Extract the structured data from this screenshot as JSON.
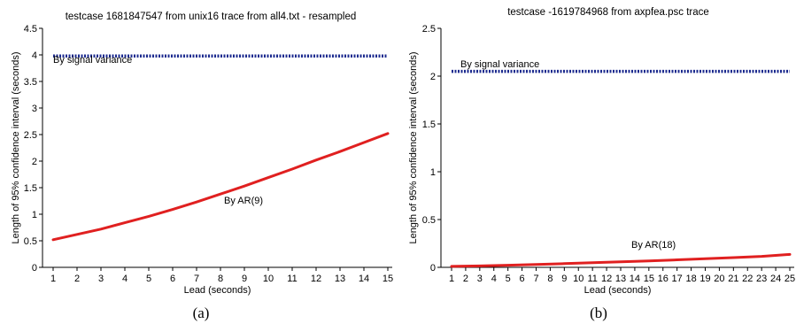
{
  "chart_data": [
    {
      "type": "line",
      "title": "testcase 1681847547 from unix16 trace from all4.txt - resampled",
      "xlabel": "Lead (seconds)",
      "ylabel": "Length of 95% confidence interval (seconds)",
      "caption": "(a)",
      "xlim": [
        1,
        15
      ],
      "ylim": [
        0,
        4.5
      ],
      "x_ticks": [
        "1",
        "2",
        "3",
        "4",
        "5",
        "6",
        "7",
        "8",
        "9",
        "10",
        "11",
        "12",
        "13",
        "14",
        "15"
      ],
      "y_ticks": [
        "0",
        "0.5",
        "1",
        "1.5",
        "2",
        "2.5",
        "3",
        "3.5",
        "4",
        "4.5"
      ],
      "grid": false,
      "series": [
        {
          "name": "By signal variance",
          "color": "#1c2b8f",
          "style": "dotted",
          "x": [
            1,
            2,
            3,
            4,
            5,
            6,
            7,
            8,
            9,
            10,
            11,
            12,
            13,
            14,
            15
          ],
          "values": [
            3.98,
            3.98,
            3.98,
            3.98,
            3.98,
            3.98,
            3.98,
            3.98,
            3.98,
            3.98,
            3.98,
            3.98,
            3.98,
            3.98,
            3.98
          ]
        },
        {
          "name": "By AR(9)",
          "color": "#e02020",
          "style": "solid",
          "x": [
            1,
            2,
            3,
            4,
            5,
            6,
            7,
            8,
            9,
            10,
            11,
            12,
            13,
            14,
            15
          ],
          "values": [
            0.52,
            0.62,
            0.72,
            0.84,
            0.96,
            1.09,
            1.23,
            1.38,
            1.53,
            1.69,
            1.85,
            2.02,
            2.18,
            2.35,
            2.52
          ]
        }
      ]
    },
    {
      "type": "line",
      "title": "testcase -1619784968 from axpfea.psc trace",
      "xlabel": "Lead (seconds)",
      "ylabel": "Length of 95% confidence interval (seconds)",
      "caption": "(b)",
      "xlim": [
        1,
        25
      ],
      "ylim": [
        0,
        2.5
      ],
      "x_ticks": [
        "1",
        "2",
        "3",
        "4",
        "5",
        "6",
        "7",
        "8",
        "9",
        "10",
        "11",
        "12",
        "13",
        "14",
        "15",
        "16",
        "17",
        "18",
        "19",
        "20",
        "21",
        "22",
        "23",
        "24",
        "25"
      ],
      "y_ticks": [
        "0",
        "0.5",
        "1",
        "1.5",
        "2",
        "2.5"
      ],
      "grid": false,
      "series": [
        {
          "name": "By signal variance",
          "color": "#1c2b8f",
          "style": "dotted",
          "x": [
            1,
            25
          ],
          "values": [
            2.05,
            2.05
          ]
        },
        {
          "name": "By AR(18)",
          "color": "#e02020",
          "style": "solid",
          "x": [
            1,
            3,
            5,
            7,
            9,
            11,
            13,
            15,
            17,
            19,
            21,
            23,
            25
          ],
          "values": [
            0.01,
            0.015,
            0.022,
            0.03,
            0.039,
            0.048,
            0.058,
            0.068,
            0.079,
            0.09,
            0.102,
            0.115,
            0.135
          ]
        }
      ]
    }
  ]
}
